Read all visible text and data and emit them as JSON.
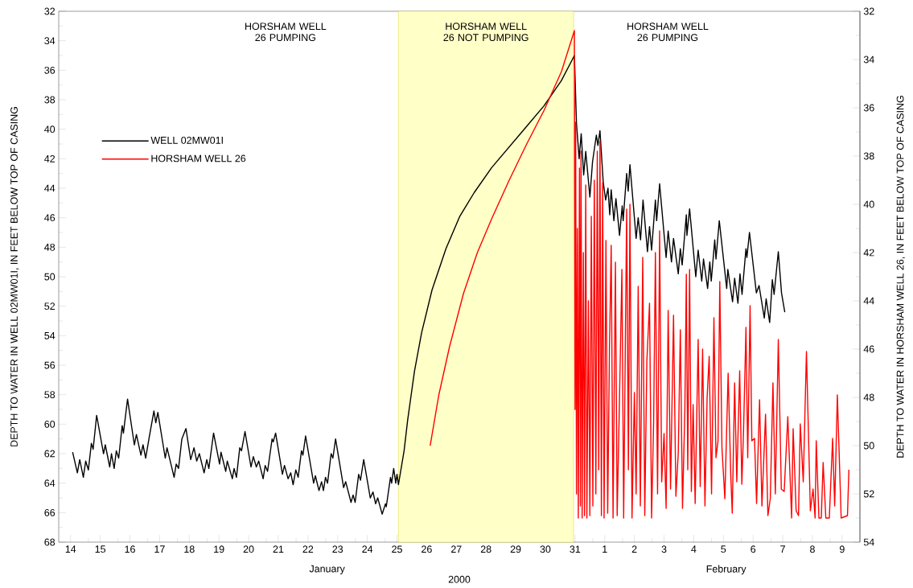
{
  "chart_data": {
    "type": "line",
    "xlabel": "2000",
    "ylabel": "DEPTH TO WATER IN WELL 02MW01I, IN FEET BELOW TOP OF CASING",
    "y2label": "DEPTH TO WATER IN HORSHAM WELL 26, IN FEET BELOW TOP OF CASING",
    "annotations": [
      "HORSHAM WELL 26 PUMPING",
      "HORSHAM WELL 26 PUMPING",
      "January",
      "February"
    ],
    "bands": [
      {
        "axis": "x",
        "from": "2000-01-25T01:10",
        "to": "2000-01-30T22:50",
        "label": "HORSHAM WELL 26 NOT PUMPING",
        "color": "#ffffc8"
      }
    ],
    "legend": "left",
    "xlim": [
      "2000-01-13T14:25",
      "2000-02-09T14:25"
    ],
    "xticks": [
      {
        "value": "2000-01-14",
        "label": "14"
      },
      {
        "value": "2000-01-15",
        "label": "15"
      },
      {
        "value": "2000-01-16",
        "label": "16"
      },
      {
        "value": "2000-01-17",
        "label": "17"
      },
      {
        "value": "2000-01-18",
        "label": "18"
      },
      {
        "value": "2000-01-19",
        "label": "19"
      },
      {
        "value": "2000-01-20",
        "label": "20"
      },
      {
        "value": "2000-01-21",
        "label": "21"
      },
      {
        "value": "2000-01-22",
        "label": "22"
      },
      {
        "value": "2000-01-23",
        "label": "23"
      },
      {
        "value": "2000-01-24",
        "label": "24"
      },
      {
        "value": "2000-01-25",
        "label": "25"
      },
      {
        "value": "2000-01-26",
        "label": "26"
      },
      {
        "value": "2000-01-27",
        "label": "27"
      },
      {
        "value": "2000-01-28",
        "label": "28"
      },
      {
        "value": "2000-01-29",
        "label": "29"
      },
      {
        "value": "2000-01-30",
        "label": "30"
      },
      {
        "value": "2000-01-31",
        "label": "31"
      },
      {
        "value": "2000-02-01",
        "label": "1"
      },
      {
        "value": "2000-02-02",
        "label": "2"
      },
      {
        "value": "2000-02-03",
        "label": "3"
      },
      {
        "value": "2000-02-04",
        "label": "4"
      },
      {
        "value": "2000-02-05",
        "label": "5"
      },
      {
        "value": "2000-02-06",
        "label": "6"
      },
      {
        "value": "2000-02-07",
        "label": "7"
      },
      {
        "value": "2000-02-08",
        "label": "8"
      },
      {
        "value": "2000-02-09",
        "label": "9"
      },
      {
        "value": "2000-01-14T14:25",
        "label": null
      },
      {
        "value": "2000-01-15T14:25",
        "label": null
      },
      {
        "value": "2000-01-16T14:25",
        "label": null
      },
      {
        "value": "2000-01-17T14:25",
        "label": null
      },
      {
        "value": "2000-01-18T14:25",
        "label": null
      },
      {
        "value": "2000-01-19T14:25",
        "label": null
      },
      {
        "value": "2000-01-20T14:25",
        "label": null
      },
      {
        "value": "2000-01-21T14:25",
        "label": null
      },
      {
        "value": "2000-01-22T14:25",
        "label": null
      },
      {
        "value": "2000-01-23T14:25",
        "label": null
      },
      {
        "value": "2000-01-24T14:25",
        "label": null
      },
      {
        "value": "2000-01-25T14:25",
        "label": null
      },
      {
        "value": "2000-01-26T14:25",
        "label": null
      },
      {
        "value": "2000-01-27T14:25",
        "label": null
      },
      {
        "value": "2000-01-28T14:25",
        "label": null
      },
      {
        "value": "2000-01-29T14:25",
        "label": null
      },
      {
        "value": "2000-01-30T14:25",
        "label": null
      },
      {
        "value": "2000-01-31T14:25",
        "label": null
      },
      {
        "value": "2000-02-01T14:25",
        "label": null
      },
      {
        "value": "2000-02-02T14:25",
        "label": null
      },
      {
        "value": "2000-02-03T14:25",
        "label": null
      },
      {
        "value": "2000-02-04T14:25",
        "label": null
      },
      {
        "value": "2000-02-05T14:25",
        "label": null
      },
      {
        "value": "2000-02-06T14:25",
        "label": null
      },
      {
        "value": "2000-02-07T14:25",
        "label": null
      },
      {
        "value": "2000-02-08T14:25",
        "label": null
      }
    ],
    "ylim": [
      68,
      32
    ],
    "yticks": [
      32,
      34,
      36,
      38,
      40,
      42,
      44,
      46,
      48,
      50,
      52,
      54,
      56,
      58,
      60,
      62,
      64,
      66,
      68,
      {
        "value": 33,
        "label": null
      },
      {
        "value": 35,
        "label": null
      },
      {
        "value": 37,
        "label": null
      },
      {
        "value": 39,
        "label": null
      },
      {
        "value": 41,
        "label": null
      },
      {
        "value": 43,
        "label": null
      },
      {
        "value": 45,
        "label": null
      },
      {
        "value": 47,
        "label": null
      },
      {
        "value": 49,
        "label": null
      },
      {
        "value": 51,
        "label": null
      },
      {
        "value": 53,
        "label": null
      },
      {
        "value": 55,
        "label": null
      },
      {
        "value": 57,
        "label": null
      },
      {
        "value": 59,
        "label": null
      },
      {
        "value": 61,
        "label": null
      },
      {
        "value": 63,
        "label": null
      },
      {
        "value": 65,
        "label": null
      },
      {
        "value": 67,
        "label": null
      }
    ],
    "y2lim": [
      54,
      32
    ],
    "y2ticks": [
      32,
      34,
      36,
      38,
      40,
      42,
      44,
      46,
      48,
      50,
      52,
      54,
      {
        "value": 33,
        "label": null
      },
      {
        "value": 35,
        "label": null
      },
      {
        "value": 37,
        "label": null
      },
      {
        "value": 39,
        "label": null
      },
      {
        "value": 41,
        "label": null
      },
      {
        "value": 43,
        "label": null
      },
      {
        "value": 45,
        "label": null
      },
      {
        "value": 47,
        "label": null
      },
      {
        "value": 49,
        "label": null
      },
      {
        "value": 51,
        "label": null
      },
      {
        "value": 53,
        "label": null
      }
    ],
    "series": [
      {
        "name": "WELL 02MW01I",
        "color": "#000000",
        "x": [
          "2000-01-14T01:40",
          "2000-01-14T05:30",
          "2000-01-14T07:25",
          "2000-01-14T10:20",
          "2000-01-14T12:15",
          "2000-01-14T14:25",
          "2000-01-14T16:50",
          "2000-01-14T18:15",
          "2000-01-14T21:05",
          "2000-01-15T02:40",
          "2000-01-15T04:05",
          "2000-01-15T07:40",
          "2000-01-15T09:05",
          "2000-01-15T11:15",
          "2000-01-15T13:00",
          "2000-01-15T14:55",
          "2000-01-15T17:45",
          "2000-01-15T18:45",
          "2000-01-15T22:05",
          "2000-01-16T03:35",
          "2000-01-16T05:15",
          "2000-01-16T08:55",
          "2000-01-16T10:35",
          "2000-01-16T12:45",
          "2000-01-16T15:35",
          "2000-01-16T19:25",
          "2000-01-16T20:55",
          "2000-01-16T22:35",
          "2000-01-17T04:35",
          "2000-01-17T06:00",
          "2000-01-17T11:45",
          "2000-01-17T13:25",
          "2000-01-17T15:20",
          "2000-01-17T18:00",
          "2000-01-17T21:20",
          "2000-01-18T01:10",
          "2000-01-18T03:50",
          "2000-01-18T06:00",
          "2000-01-18T08:10",
          "2000-01-18T12:00",
          "2000-01-18T14:10",
          "2000-01-18T15:50",
          "2000-01-18T19:40",
          "2000-01-19T00:30",
          "2000-01-19T01:40",
          "2000-01-19T05:30",
          "2000-01-19T06:45",
          "2000-01-19T10:50",
          "2000-01-19T12:15",
          "2000-01-19T14:10",
          "2000-01-19T16:50",
          "2000-01-19T18:15",
          "2000-01-19T21:05",
          "2000-01-20T01:55",
          "2000-01-20T03:50",
          "2000-01-20T06:15",
          "2000-01-20T08:10",
          "2000-01-20T11:45",
          "2000-01-20T13:25",
          "2000-01-20T15:20",
          "2000-01-20T19:00",
          "2000-01-20T19:55",
          "2000-01-20T21:50",
          "2000-01-21T03:20",
          "2000-01-21T05:00",
          "2000-01-21T07:55",
          "2000-01-21T10:05",
          "2000-01-21T12:00",
          "2000-01-21T14:10",
          "2000-01-21T16:05",
          "2000-01-21T18:45",
          "2000-01-21T19:55",
          "2000-01-21T22:05",
          "2000-01-22T04:35",
          "2000-01-22T06:00",
          "2000-01-22T08:55",
          "2000-01-22T11:00",
          "2000-01-22T12:30",
          "2000-01-22T14:10",
          "2000-01-22T15:50",
          "2000-01-22T18:45",
          "2000-01-22T20:10",
          "2000-01-22T22:20",
          "2000-01-23T04:50",
          "2000-01-23T06:30",
          "2000-01-23T10:50",
          "2000-01-23T12:30",
          "2000-01-23T14:10",
          "2000-01-23T17:00",
          "2000-01-23T18:30",
          "2000-01-23T21:05",
          "2000-01-24T02:25",
          "2000-01-24T04:35",
          "2000-01-24T06:45",
          "2000-01-24T08:25",
          "2000-01-24T12:00",
          "2000-01-24T14:40",
          "2000-01-24T15:20",
          "2000-01-24T18:45",
          "2000-01-24T19:40",
          "2000-01-24T21:20",
          "2000-01-24T23:00",
          "2000-01-25T00:00",
          "2000-01-25T01:10",
          "2000-01-25T05:45",
          "2000-01-25T08:40",
          "2000-01-25T14:10",
          "2000-01-25T19:55",
          "2000-01-26T04:20",
          "2000-01-26T15:35",
          "2000-01-27T02:50",
          "2000-01-27T14:25",
          "2000-01-28T04:35",
          "2000-01-28T18:45",
          "2000-01-29T08:55",
          "2000-01-29T23:00",
          "2000-01-30T13:00",
          "2000-01-30T23:30",
          "2000-01-31T01:10",
          "2000-01-31T03:20",
          "2000-01-31T05:00",
          "2000-01-31T07:00",
          "2000-01-31T08:40",
          "2000-01-31T12:00",
          "2000-01-31T14:10",
          "2000-01-31T17:15",
          "2000-01-31T18:30",
          "2000-01-31T20:10",
          "2000-01-31T22:50",
          "2000-02-01T00:45",
          "2000-02-01T02:40",
          "2000-02-01T04:05",
          "2000-02-01T05:15",
          "2000-02-01T07:25",
          "2000-02-01T09:05",
          "2000-02-01T12:00",
          "2000-02-01T14:10",
          "2000-02-01T14:55",
          "2000-02-01T17:45",
          "2000-02-01T19:00",
          "2000-02-01T20:25",
          "2000-02-02T01:25",
          "2000-02-02T03:05",
          "2000-02-02T05:00",
          "2000-02-02T07:00",
          "2000-02-02T10:35",
          "2000-02-02T12:15",
          "2000-02-02T13:55",
          "2000-02-02T17:00",
          "2000-02-02T18:00",
          "2000-02-02T20:25",
          "2000-02-03T01:40",
          "2000-02-03T03:20",
          "2000-02-03T06:00",
          "2000-02-03T07:40",
          "2000-02-03T11:30",
          "2000-02-03T13:10",
          "2000-02-03T14:40",
          "2000-02-03T18:00",
          "2000-02-03T18:30",
          "2000-02-03T20:40",
          "2000-02-04T01:40",
          "2000-02-04T03:35",
          "2000-02-04T06:30",
          "2000-02-04T07:55",
          "2000-02-04T11:15",
          "2000-02-04T13:00",
          "2000-02-04T14:10",
          "2000-02-04T17:00",
          "2000-02-04T18:00",
          "2000-02-04T20:40",
          "2000-02-05T02:40",
          "2000-02-05T03:35",
          "2000-02-05T07:25",
          "2000-02-05T09:05",
          "2000-02-05T11:45",
          "2000-02-05T13:25",
          "2000-02-05T15:05",
          "2000-02-05T18:15",
          "2000-02-05T19:00",
          "2000-02-05T21:05",
          "2000-02-06T02:40",
          "2000-02-06T04:50",
          "2000-02-06T09:05",
          "2000-02-06T10:35",
          "2000-02-06T13:25",
          "2000-02-06T15:35",
          "2000-02-06T17:00",
          "2000-02-06T20:25",
          "2000-02-06T23:00",
          "2000-02-07T01:40"
        ],
        "values": [
          61.9,
          63.3,
          62.4,
          63.6,
          62.5,
          63.1,
          61.3,
          61.7,
          59.4,
          62.0,
          61.4,
          62.9,
          62.0,
          63.0,
          61.8,
          62.3,
          60.1,
          60.6,
          58.3,
          61.4,
          60.7,
          62.1,
          61.4,
          62.3,
          60.9,
          59.1,
          59.9,
          59.2,
          62.3,
          61.6,
          63.6,
          62.7,
          63.0,
          61.0,
          60.3,
          62.4,
          61.6,
          62.5,
          62.0,
          63.3,
          62.4,
          63.0,
          60.6,
          62.7,
          61.9,
          63.2,
          62.5,
          63.7,
          63.0,
          63.6,
          61.6,
          61.8,
          60.5,
          62.9,
          62.2,
          62.9,
          62.5,
          63.7,
          62.8,
          63.2,
          61.0,
          61.2,
          60.6,
          63.4,
          62.8,
          63.7,
          63.3,
          64.1,
          63.1,
          63.6,
          61.8,
          62.1,
          60.8,
          64.0,
          63.5,
          64.5,
          63.9,
          64.5,
          63.6,
          64.0,
          62.0,
          62.3,
          61.0,
          64.3,
          63.9,
          65.3,
          64.8,
          65.3,
          63.4,
          63.8,
          62.4,
          65.0,
          64.6,
          65.4,
          65.0,
          66.1,
          65.4,
          65.6,
          63.6,
          64.0,
          63.0,
          64.0,
          63.4,
          64.1,
          61.8,
          59.7,
          56.4,
          53.8,
          50.9,
          48.1,
          45.9,
          44.3,
          42.6,
          41.2,
          39.8,
          38.4,
          36.7,
          35.0,
          39.6,
          42.0,
          40.3,
          43.1,
          41.5,
          44.6,
          42.2,
          40.4,
          41.1,
          40.1,
          43.6,
          44.8,
          44.0,
          45.8,
          44.1,
          46.2,
          44.7,
          47.2,
          45.2,
          46.2,
          43.0,
          44.2,
          42.4,
          47.4,
          46.0,
          47.5,
          44.8,
          48.3,
          46.6,
          48.2,
          44.8,
          46.2,
          43.7,
          48.7,
          46.9,
          49.0,
          47.4,
          49.8,
          48.1,
          49.2,
          45.8,
          47.2,
          45.4,
          50.0,
          48.2,
          50.3,
          48.8,
          50.8,
          49.0,
          50.3,
          47.5,
          48.8,
          46.2,
          50.8,
          49.5,
          51.7,
          50.1,
          51.8,
          49.8,
          51.2,
          48.1,
          48.7,
          47.0,
          51.1,
          50.6,
          52.8,
          51.5,
          53.1,
          50.2,
          51.2,
          48.3,
          51.1,
          52.4
        ]
      },
      {
        "name": "HORSHAM WELL 26",
        "color": "#ff0000",
        "axis": "y2",
        "x": [
          "2000-01-26T02:50",
          "2000-01-26T09:50",
          "2000-01-26T18:30",
          "2000-01-27T05:45",
          "2000-01-27T17:00",
          "2000-01-28T04:35",
          "2000-01-28T18:45",
          "2000-01-29T08:55",
          "2000-01-29T23:00",
          "2000-01-30T13:00",
          "2000-01-30T23:30",
          "2000-01-31T00:00",
          "2000-01-31T00:30",
          "2000-01-31T01:10",
          "2000-01-31T01:55",
          "2000-01-31T02:40",
          "2000-01-31T03:35",
          "2000-01-31T04:20",
          "2000-01-31T04:50",
          "2000-01-31T05:45",
          "2000-01-31T06:45",
          "2000-01-31T07:40",
          "2000-01-31T08:40",
          "2000-01-31T09:35",
          "2000-01-31T10:50",
          "2000-01-31T12:00",
          "2000-01-31T13:10",
          "2000-01-31T14:25",
          "2000-01-31T15:35",
          "2000-01-31T16:50",
          "2000-01-31T18:00",
          "2000-01-31T19:10",
          "2000-01-31T20:10",
          "2000-01-31T21:20",
          "2000-01-31T22:20",
          "2000-01-31T23:30",
          "2000-02-01T01:00",
          "2000-02-01T02:25",
          "2000-02-01T03:50",
          "2000-02-01T05:15",
          "2000-02-01T06:45",
          "2000-02-01T08:40",
          "2000-02-01T10:05",
          "2000-02-01T12:00",
          "2000-02-01T13:55",
          "2000-02-01T15:20",
          "2000-02-01T16:50",
          "2000-02-01T17:45",
          "2000-02-01T19:10",
          "2000-02-01T20:25",
          "2000-02-01T22:05",
          "2000-02-02T00:00",
          "2000-02-02T01:25",
          "2000-02-02T03:05",
          "2000-02-02T04:50",
          "2000-02-02T06:45",
          "2000-02-02T08:25",
          "2000-02-02T10:05",
          "2000-02-02T12:15",
          "2000-02-02T13:55",
          "2000-02-02T15:35",
          "2000-02-02T17:00",
          "2000-02-02T18:45",
          "2000-02-02T20:25",
          "2000-02-02T22:05",
          "2000-02-03T00:00",
          "2000-02-03T01:40",
          "2000-02-03T03:20",
          "2000-02-03T05:15",
          "2000-02-03T07:40",
          "2000-02-03T09:35",
          "2000-02-03T11:30",
          "2000-02-03T13:10",
          "2000-02-03T14:55",
          "2000-02-03T16:50",
          "2000-02-03T18:00",
          "2000-02-03T19:10",
          "2000-02-03T20:40",
          "2000-02-03T22:05",
          "2000-02-03T23:30",
          "2000-02-04T01:10",
          "2000-02-04T03:35",
          "2000-02-04T05:15",
          "2000-02-04T07:10",
          "2000-02-04T09:05",
          "2000-02-04T10:50",
          "2000-02-04T12:30",
          "2000-02-04T14:25",
          "2000-02-04T16:20",
          "2000-02-04T18:00",
          "2000-02-04T19:40",
          "2000-02-04T21:05",
          "2000-02-04T22:50",
          "2000-02-05T01:10",
          "2000-02-05T03:50",
          "2000-02-05T06:00",
          "2000-02-05T07:10",
          "2000-02-05T09:05",
          "2000-02-05T10:50",
          "2000-02-05T13:10",
          "2000-02-05T14:55",
          "2000-02-05T16:20",
          "2000-02-05T18:15",
          "2000-02-05T19:40",
          "2000-02-05T21:35",
          "2000-02-05T23:00",
          "2000-02-06T01:10",
          "2000-02-06T02:50",
          "2000-02-06T05:15",
          "2000-02-06T07:10",
          "2000-02-06T10:05",
          "2000-02-06T12:00",
          "2000-02-06T13:55",
          "2000-02-06T16:05",
          "2000-02-06T18:00",
          "2000-02-06T20:25",
          "2000-02-06T22:50",
          "2000-02-07T01:10",
          "2000-02-07T04:05",
          "2000-02-07T07:10",
          "2000-02-07T08:25",
          "2000-02-07T10:50",
          "2000-02-07T12:45",
          "2000-02-07T14:10",
          "2000-02-07T16:35",
          "2000-02-07T19:10",
          "2000-02-07T22:20",
          "2000-02-08T00:30",
          "2000-02-08T02:10",
          "2000-02-08T03:05",
          "2000-02-08T05:15",
          "2000-02-08T07:10",
          "2000-02-08T08:40",
          "2000-02-08T10:50",
          "2000-02-08T13:40",
          "2000-02-08T16:20",
          "2000-02-08T18:00",
          "2000-02-08T20:10",
          "2000-02-08T23:15",
          "2000-02-09T04:20",
          "2000-02-09T05:30"
        ],
        "values": [
          50.0,
          47.9,
          45.9,
          43.7,
          42.0,
          40.6,
          39.0,
          37.5,
          36.1,
          34.5,
          32.8,
          48.5,
          36.6,
          52.0,
          41.0,
          53.0,
          38.5,
          52.5,
          37.8,
          53.0,
          42.0,
          52.9,
          39.2,
          53.0,
          44.0,
          52.9,
          40.5,
          52.5,
          39.0,
          52.0,
          37.8,
          51.0,
          37.4,
          52.9,
          39.1,
          53.0,
          41.5,
          52.8,
          46.0,
          41.7,
          53.0,
          42.4,
          52.9,
          48.0,
          42.7,
          53.0,
          45.0,
          40.2,
          51.0,
          40.0,
          53.0,
          47.8,
          52.0,
          43.4,
          52.5,
          42.2,
          52.9,
          46.5,
          44.1,
          53.0,
          49.0,
          42.0,
          52.0,
          41.1,
          51.5,
          49.5,
          52.6,
          44.4,
          51.8,
          44.6,
          52.1,
          50.3,
          45.2,
          52.6,
          48.5,
          42.9,
          51.0,
          42.7,
          51.9,
          48.3,
          52.4,
          45.6,
          51.7,
          46.0,
          52.5,
          48.0,
          46.3,
          52.0,
          44.7,
          50.5,
          49.8,
          43.2,
          50.1,
          52.2,
          47.0,
          51.3,
          52.8,
          47.4,
          51.5,
          46.9,
          51.6,
          49.3,
          45.1,
          50.5,
          44.2,
          49.8,
          49.7,
          52.4,
          48.1,
          52.5,
          48.7,
          52.9,
          52.2,
          47.4,
          52.0,
          45.6,
          51.8,
          51.9,
          48.8,
          53.0,
          49.3,
          52.7,
          52.9,
          49.1,
          51.5,
          46.1,
          52.7,
          51.8,
          53.0,
          49.8,
          53.0,
          53.0,
          50.7,
          53.0,
          53.0,
          49.7,
          52.5,
          47.9,
          53.0,
          52.9,
          51.0
        ]
      }
    ]
  }
}
